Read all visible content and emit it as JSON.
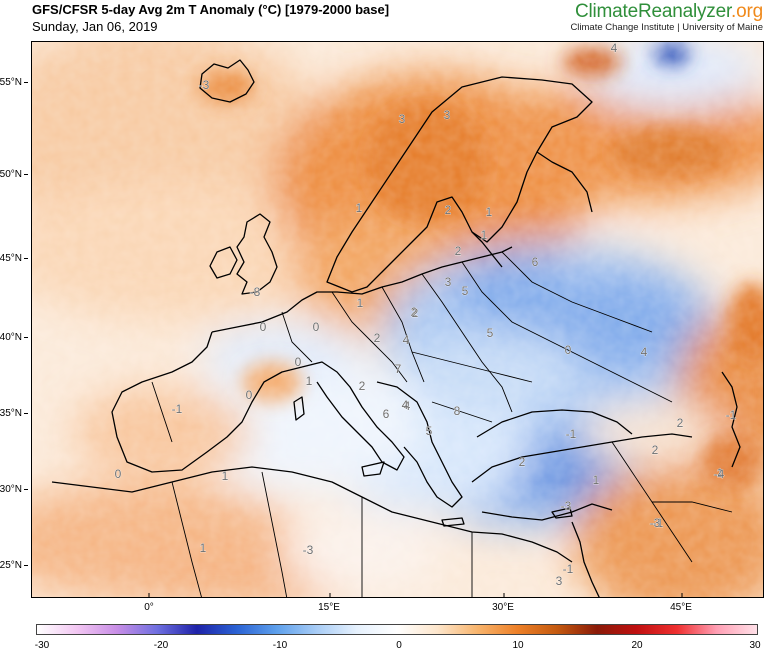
{
  "header": {
    "title": "GFS/CFSR 5-day Avg 2m T Anomaly (°C) [1979-2000 base]",
    "date": "Sunday, Jan 06, 2019",
    "brand_part1": "Climate",
    "brand_part2": "Reanalyzer",
    "brand_part3": ".org",
    "institution": "Climate Change Institute | University of Maine"
  },
  "map": {
    "region": "Europe",
    "lat_labels": [
      "55°N",
      "50°N",
      "45°N",
      "40°N",
      "35°N",
      "30°N",
      "25°N"
    ],
    "lon_labels": [
      "0°",
      "15°E",
      "30°E",
      "45°E"
    ],
    "contour_labels": [
      "-3",
      "3",
      "3",
      "1",
      "2",
      "1",
      "1",
      "2",
      "6",
      "3",
      "5",
      "2",
      "5",
      "-8",
      "0",
      "0",
      "1",
      "2",
      "4",
      "4",
      "2",
      "7",
      "0",
      "1",
      "-1",
      "0",
      "2",
      "6",
      "4",
      "8",
      "5",
      "0",
      "-1",
      "0",
      "1",
      "2",
      "1",
      "-3",
      "-1",
      "2",
      "1",
      "2",
      "-4",
      "-3",
      "-3",
      "1",
      "-1",
      "3",
      "-1",
      "4",
      "4"
    ]
  },
  "colorbar": {
    "ticks": [
      "-30",
      "-20",
      "-10",
      "0",
      "10",
      "20",
      "30"
    ],
    "colors": [
      "#ffffff",
      "#f2c6f2",
      "#c88ee6",
      "#6f6fe0",
      "#1e22a8",
      "#2b63d4",
      "#5ea0ec",
      "#a9cdf6",
      "#e6f1fd",
      "#ffffff",
      "#fde6cc",
      "#f8b56e",
      "#ed8028",
      "#c45a10",
      "#8a1a08",
      "#c01010",
      "#ef3030",
      "#ff9fb4",
      "#ffe0e8"
    ]
  }
}
